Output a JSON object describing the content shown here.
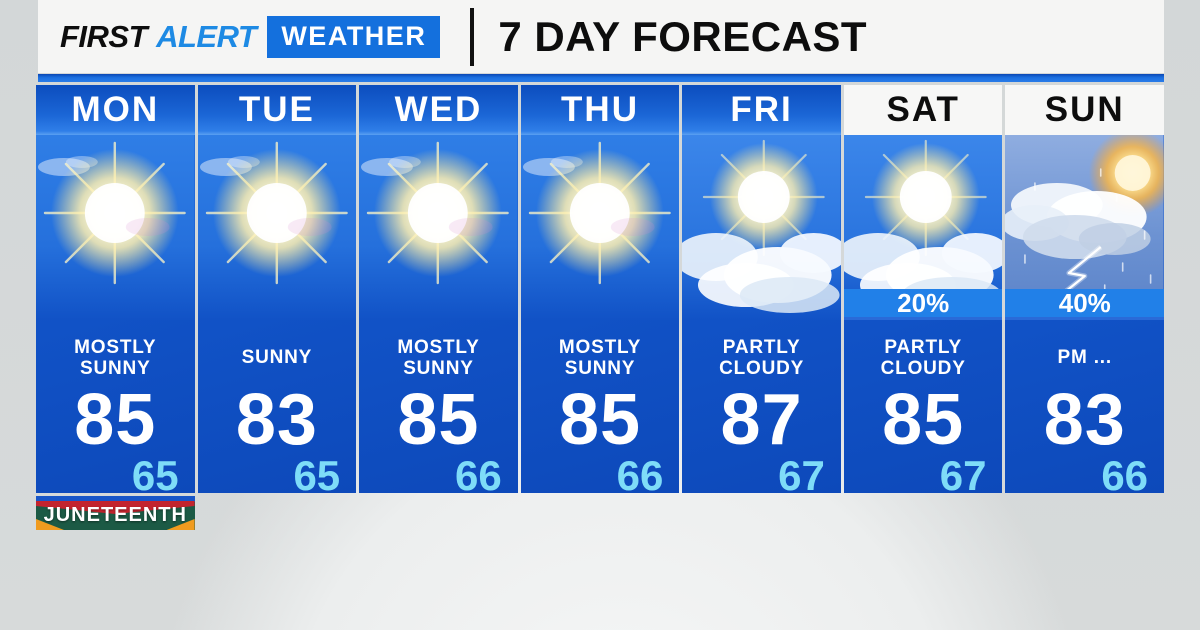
{
  "header": {
    "logo": {
      "first": "FIRST",
      "alert": "ALERT",
      "weather": "WEATHER"
    },
    "title": "7 DAY FORECAST"
  },
  "colors": {
    "logo_alert_blue": "#1e8ae4",
    "logo_weather_box_blue": "#1470dd",
    "top_bar_blue": "#1b6fe0",
    "weekday_header_blue": "#1b66d6",
    "card_body_blue": "#1152c6",
    "precip_bar_blue": "#2180e8",
    "low_temp_cyan": "#7edcf8",
    "banner_green": "#1c5a45",
    "banner_red": "#c3242e",
    "banner_orange": "#f09b1f",
    "banner_stripe_blue": "#1856c8"
  },
  "forecast": {
    "days": [
      {
        "label": "MON",
        "header_style": "weekday",
        "icon": "sunny",
        "condition": "MOSTLY SUNNY",
        "high": "85",
        "low": "65",
        "precip": null,
        "banner": "JUNETEENTH"
      },
      {
        "label": "TUE",
        "header_style": "weekday",
        "icon": "sunny",
        "condition": "SUNNY",
        "high": "83",
        "low": "65",
        "precip": null,
        "banner": null
      },
      {
        "label": "WED",
        "header_style": "weekday",
        "icon": "sunny",
        "condition": "MOSTLY SUNNY",
        "high": "85",
        "low": "66",
        "precip": null,
        "banner": null
      },
      {
        "label": "THU",
        "header_style": "weekday",
        "icon": "sunny",
        "condition": "MOSTLY SUNNY",
        "high": "85",
        "low": "66",
        "precip": null,
        "banner": null
      },
      {
        "label": "FRI",
        "header_style": "weekday",
        "icon": "partly-cloudy",
        "condition": "PARTLY CLOUDY",
        "high": "87",
        "low": "67",
        "precip": null,
        "banner": null
      },
      {
        "label": "SAT",
        "header_style": "weekend",
        "icon": "partly-cloudy",
        "condition": "PARTLY CLOUDY",
        "high": "85",
        "low": "67",
        "precip": "20%",
        "banner": null
      },
      {
        "label": "SUN",
        "header_style": "weekend",
        "icon": "storm",
        "condition": "PM ...",
        "high": "83",
        "low": "66",
        "precip": "40%",
        "banner": null
      }
    ]
  }
}
